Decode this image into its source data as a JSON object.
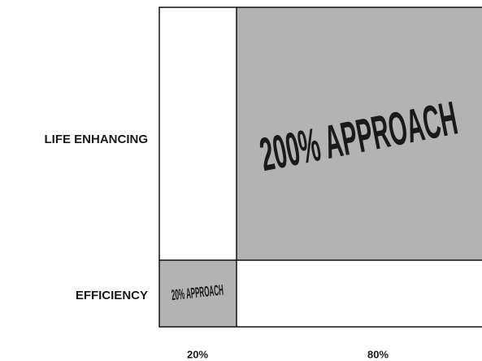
{
  "rows": [
    {
      "label": "LIFE ENHANCING"
    },
    {
      "label": "EFFICIENCY"
    }
  ],
  "columns": [
    {
      "label": "20%"
    },
    {
      "label": "80%"
    }
  ],
  "cells": {
    "top_right": "200% APPROACH",
    "bottom_left": "20% APPROACH"
  }
}
